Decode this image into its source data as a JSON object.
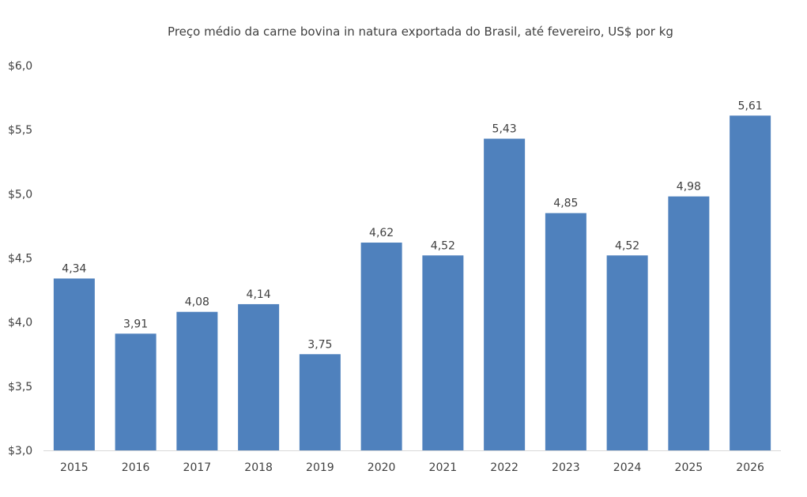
{
  "chart_data": {
    "type": "bar",
    "title": "Preço médio da carne bovina in natura exportada do Brasil, até fevereiro, US$ por kg",
    "xlabel": "",
    "ylabel": "",
    "categories": [
      "2015",
      "2016",
      "2017",
      "2018",
      "2019",
      "2020",
      "2021",
      "2022",
      "2023",
      "2024",
      "2025",
      "2026"
    ],
    "values": [
      4.34,
      3.91,
      4.08,
      4.14,
      3.75,
      4.62,
      4.52,
      5.43,
      4.85,
      4.52,
      4.98,
      5.61
    ],
    "data_labels": [
      "4,34",
      "3,91",
      "4,08",
      "4,14",
      "3,75",
      "4,62",
      "4,52",
      "5,43",
      "4,85",
      "4,52",
      "4,98",
      "5,61"
    ],
    "ylim": [
      3.0,
      6.0
    ],
    "yticks": [
      3.0,
      3.5,
      4.0,
      4.5,
      5.0,
      5.5,
      6.0
    ],
    "ytick_labels": [
      "$3,0",
      "$3,5",
      "$4,0",
      "$4,5",
      "$5,0",
      "$5,5",
      "$6,0"
    ],
    "grid": false,
    "legend": "none",
    "bar_color": "#4f81bd"
  }
}
